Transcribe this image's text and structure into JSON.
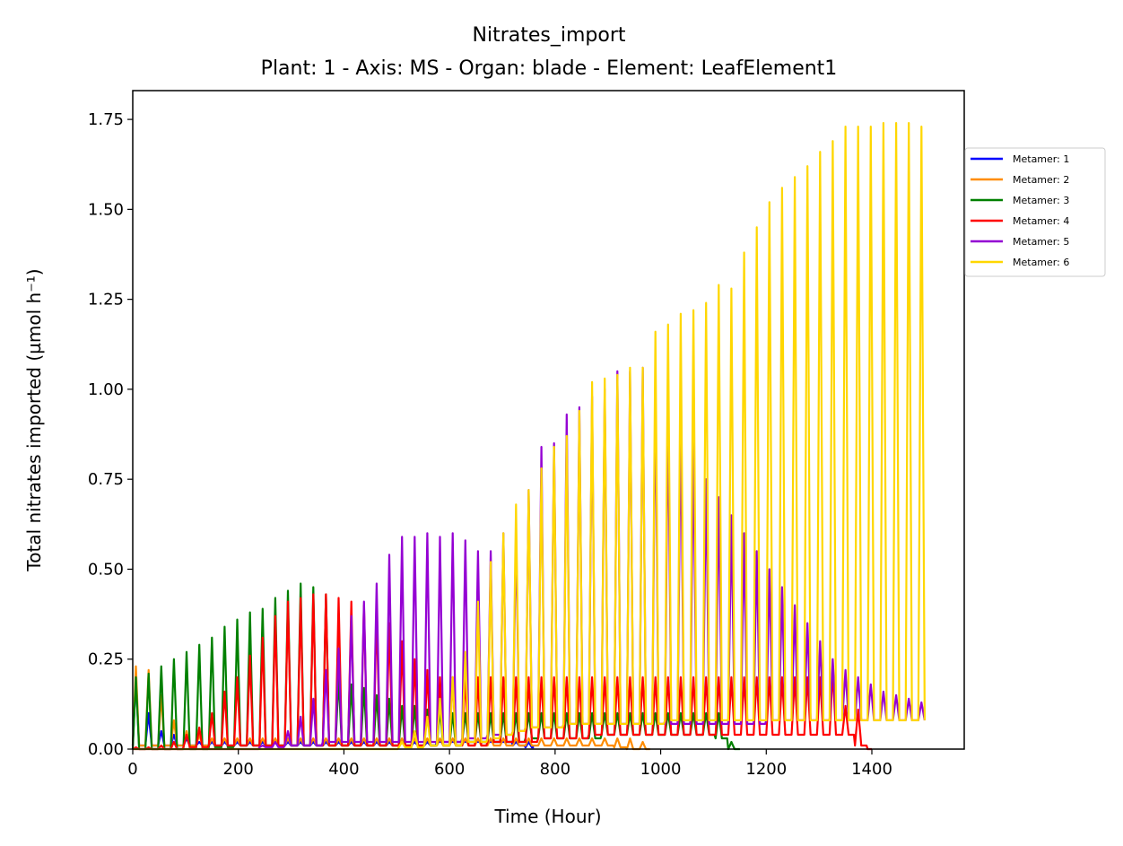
{
  "chart_data": {
    "type": "line",
    "title": "Nitrates_import",
    "subtitle": "Plant: 1 - Axis: MS - Organ: blade - Element: LeafElement1",
    "xlabel": "Time (Hour)",
    "ylabel": "Total nitrates imported (µmol h⁻¹)",
    "xlim": [
      0,
      1575
    ],
    "ylim": [
      0,
      1.83
    ],
    "xticks": [
      0,
      200,
      400,
      600,
      800,
      1000,
      1200,
      1400
    ],
    "xtick_labels": [
      "0",
      "200",
      "400",
      "600",
      "800",
      "1000",
      "1200",
      "1400"
    ],
    "yticks": [
      0,
      0.25,
      0.5,
      0.75,
      1.0,
      1.25,
      1.5,
      1.75
    ],
    "ytick_labels": [
      "0.00",
      "0.25",
      "0.50",
      "0.75",
      "1.00",
      "1.25",
      "1.50",
      "1.75"
    ],
    "grid": false,
    "legend_position": "outside-right",
    "period_hours": 24,
    "series": [
      {
        "name": "Metamer: 1",
        "color": "#0000ff",
        "t_start": 0,
        "t_end": 760,
        "peaks": [
          0.2,
          0.1,
          0.05,
          0.04,
          0.03,
          0.02,
          0.02,
          0.02,
          0.02,
          0.02,
          0.02,
          0.02,
          0.02,
          0.02,
          0.02,
          0.02,
          0.02,
          0.02,
          0.02,
          0.02,
          0.02,
          0.02,
          0.02,
          0.02,
          0.02,
          0.02,
          0.02,
          0.02,
          0.02,
          0.02,
          0.02,
          0.02
        ],
        "base": [
          0.01,
          0.01,
          0.01,
          0.01,
          0.01,
          0.01,
          0.01,
          0.01,
          0.01,
          0.01,
          0.01,
          0.01,
          0.01,
          0.01,
          0.01,
          0.01,
          0.01,
          0.01,
          0.01,
          0.01,
          0.01,
          0.01,
          0.01,
          0.01,
          0.02,
          0.02,
          0.02,
          0.02,
          0.02,
          0.02,
          0.01,
          0.005
        ]
      },
      {
        "name": "Metamer: 2",
        "color": "#ff8c00",
        "t_start": 0,
        "t_end": 980,
        "peaks": [
          0.23,
          0.22,
          0.15,
          0.08,
          0.05,
          0.04,
          0.03,
          0.03,
          0.03,
          0.03,
          0.03,
          0.03,
          0.03,
          0.03,
          0.03,
          0.03,
          0.03,
          0.03,
          0.03,
          0.03,
          0.03,
          0.03,
          0.03,
          0.03,
          0.03,
          0.03,
          0.03,
          0.03,
          0.03,
          0.03,
          0.03,
          0.03,
          0.03,
          0.03,
          0.03,
          0.03,
          0.03,
          0.03,
          0.03,
          0.03,
          0.02
        ],
        "base": [
          0.01,
          0.01,
          0.01,
          0.01,
          0.01,
          0.01,
          0.01,
          0.01,
          0.01,
          0.01,
          0.01,
          0.01,
          0.01,
          0.01,
          0.01,
          0.01,
          0.01,
          0.01,
          0.01,
          0.01,
          0.01,
          0.01,
          0.01,
          0.01,
          0.01,
          0.01,
          0.01,
          0.01,
          0.01,
          0.01,
          0.01,
          0.01,
          0.01,
          0.01,
          0.01,
          0.01,
          0.01,
          0.01,
          0.005,
          0.0,
          0.0
        ]
      },
      {
        "name": "Metamer: 3",
        "color": "#008000",
        "t_start": 0,
        "t_end": 1160,
        "peaks": [
          0.2,
          0.21,
          0.23,
          0.25,
          0.27,
          0.29,
          0.31,
          0.34,
          0.36,
          0.38,
          0.39,
          0.42,
          0.44,
          0.46,
          0.45,
          0.43,
          0.2,
          0.18,
          0.17,
          0.15,
          0.14,
          0.12,
          0.12,
          0.11,
          0.11,
          0.1,
          0.1,
          0.1,
          0.1,
          0.1,
          0.1,
          0.1,
          0.1,
          0.1,
          0.1,
          0.1,
          0.1,
          0.1,
          0.1,
          0.1,
          0.1,
          0.1,
          0.1,
          0.1,
          0.1,
          0.1,
          0.1,
          0.02
        ],
        "base": [
          0.0,
          0.0,
          0.0,
          0.0,
          0.0,
          0.0,
          0.005,
          0.005,
          0.01,
          0.01,
          0.01,
          0.01,
          0.01,
          0.01,
          0.01,
          0.01,
          0.01,
          0.01,
          0.01,
          0.01,
          0.01,
          0.01,
          0.01,
          0.01,
          0.01,
          0.01,
          0.02,
          0.02,
          0.02,
          0.02,
          0.02,
          0.03,
          0.03,
          0.03,
          0.03,
          0.03,
          0.03,
          0.04,
          0.04,
          0.04,
          0.04,
          0.04,
          0.04,
          0.04,
          0.04,
          0.04,
          0.03,
          0.0
        ]
      },
      {
        "name": "Metamer: 4",
        "color": "#ff0000",
        "t_start": 0,
        "t_end": 1400,
        "peaks": [
          0.005,
          0.005,
          0.01,
          0.02,
          0.04,
          0.06,
          0.1,
          0.16,
          0.2,
          0.26,
          0.31,
          0.37,
          0.41,
          0.42,
          0.43,
          0.43,
          0.42,
          0.41,
          0.4,
          0.38,
          0.35,
          0.3,
          0.25,
          0.22,
          0.2,
          0.2,
          0.2,
          0.2,
          0.2,
          0.2,
          0.2,
          0.2,
          0.2,
          0.2,
          0.2,
          0.2,
          0.2,
          0.2,
          0.2,
          0.2,
          0.2,
          0.2,
          0.2,
          0.2,
          0.2,
          0.2,
          0.2,
          0.2,
          0.2,
          0.2,
          0.2,
          0.2,
          0.2,
          0.2,
          0.2,
          0.22,
          0.12,
          0.11,
          0.0
        ],
        "base": [
          0.0,
          0.0,
          0.0,
          0.0,
          0.005,
          0.005,
          0.01,
          0.01,
          0.01,
          0.01,
          0.01,
          0.01,
          0.01,
          0.01,
          0.01,
          0.01,
          0.01,
          0.01,
          0.01,
          0.01,
          0.01,
          0.01,
          0.01,
          0.01,
          0.01,
          0.01,
          0.01,
          0.01,
          0.02,
          0.02,
          0.02,
          0.02,
          0.03,
          0.03,
          0.03,
          0.03,
          0.04,
          0.04,
          0.04,
          0.04,
          0.04,
          0.04,
          0.04,
          0.04,
          0.04,
          0.04,
          0.04,
          0.04,
          0.04,
          0.04,
          0.04,
          0.04,
          0.04,
          0.04,
          0.04,
          0.04,
          0.04,
          0.01,
          0.0
        ]
      },
      {
        "name": "Metamer: 5",
        "color": "#9400d3",
        "t_start": 0,
        "t_end": 1500,
        "peaks": [
          0.0,
          0.0,
          0.0,
          0.0,
          0.0,
          0.0,
          0.0,
          0.0,
          0.0,
          0.0,
          0.01,
          0.02,
          0.05,
          0.09,
          0.14,
          0.22,
          0.28,
          0.37,
          0.41,
          0.46,
          0.54,
          0.59,
          0.59,
          0.6,
          0.59,
          0.6,
          0.58,
          0.55,
          0.55,
          0.6,
          0.6,
          0.72,
          0.84,
          0.85,
          0.93,
          0.95,
          0.98,
          1.0,
          1.05,
          1.05,
          1.06,
          1.0,
          0.95,
          0.93,
          0.85,
          0.75,
          0.7,
          0.65,
          0.6,
          0.55,
          0.5,
          0.45,
          0.4,
          0.35,
          0.3,
          0.25,
          0.22,
          0.2,
          0.18,
          0.16,
          0.15,
          0.14,
          0.13
        ],
        "base": [
          0.0,
          0.0,
          0.0,
          0.0,
          0.0,
          0.0,
          0.0,
          0.0,
          0.0,
          0.0,
          0.005,
          0.005,
          0.01,
          0.01,
          0.01,
          0.02,
          0.02,
          0.02,
          0.02,
          0.02,
          0.02,
          0.02,
          0.02,
          0.02,
          0.02,
          0.02,
          0.03,
          0.03,
          0.04,
          0.04,
          0.05,
          0.06,
          0.06,
          0.06,
          0.07,
          0.07,
          0.07,
          0.07,
          0.07,
          0.07,
          0.07,
          0.07,
          0.07,
          0.07,
          0.07,
          0.07,
          0.07,
          0.07,
          0.07,
          0.07,
          0.08,
          0.08,
          0.08,
          0.08,
          0.08,
          0.08,
          0.08,
          0.08,
          0.08,
          0.08,
          0.08,
          0.08,
          0.08
        ]
      },
      {
        "name": "Metamer: 6",
        "color": "#ffd700",
        "t_start": 0,
        "t_end": 1500,
        "peaks": [
          0.0,
          0.0,
          0.0,
          0.0,
          0.0,
          0.0,
          0.0,
          0.0,
          0.0,
          0.0,
          0.0,
          0.0,
          0.0,
          0.0,
          0.0,
          0.0,
          0.0,
          0.0,
          0.0,
          0.0,
          0.0,
          0.02,
          0.05,
          0.09,
          0.14,
          0.2,
          0.27,
          0.41,
          0.52,
          0.6,
          0.68,
          0.72,
          0.78,
          0.84,
          0.87,
          0.94,
          1.02,
          1.03,
          1.04,
          1.06,
          1.06,
          1.16,
          1.18,
          1.21,
          1.22,
          1.24,
          1.29,
          1.28,
          1.38,
          1.45,
          1.52,
          1.56,
          1.59,
          1.62,
          1.66,
          1.69,
          1.73,
          1.73,
          1.73,
          1.74,
          1.74,
          1.74,
          1.73
        ],
        "base": [
          0.0,
          0.0,
          0.0,
          0.0,
          0.0,
          0.0,
          0.0,
          0.0,
          0.0,
          0.0,
          0.0,
          0.0,
          0.0,
          0.0,
          0.0,
          0.0,
          0.0,
          0.0,
          0.0,
          0.0,
          0.0,
          0.005,
          0.005,
          0.01,
          0.01,
          0.01,
          0.02,
          0.02,
          0.03,
          0.04,
          0.05,
          0.06,
          0.06,
          0.06,
          0.07,
          0.07,
          0.07,
          0.07,
          0.07,
          0.07,
          0.07,
          0.07,
          0.08,
          0.08,
          0.08,
          0.08,
          0.08,
          0.08,
          0.08,
          0.08,
          0.08,
          0.08,
          0.08,
          0.08,
          0.08,
          0.08,
          0.08,
          0.08,
          0.08,
          0.08,
          0.08,
          0.08,
          0.08
        ]
      }
    ]
  }
}
